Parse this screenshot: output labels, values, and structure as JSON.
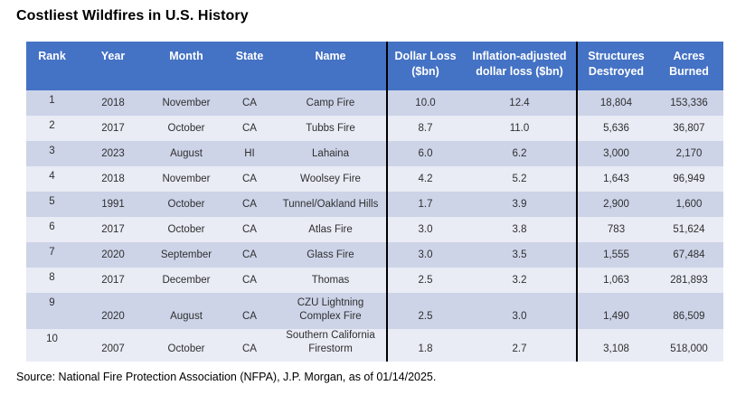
{
  "page": {
    "title": "Costliest Wildfires in U.S. History",
    "source_note": "Source: National Fire Protection Association (NFPA), J.P. Morgan, as of 01/14/2025."
  },
  "colors": {
    "header_bg": "#4472C4",
    "header_text": "#FFFFFF",
    "band_dark": "#CDD4E8",
    "band_light": "#E9EBF5",
    "group_divider": "#000000",
    "body_text": "#2F2F2F"
  },
  "table": {
    "columns": [
      "Rank",
      "Year",
      "Month",
      "State",
      "Name",
      "Dollar Loss ($bn)",
      "Inflation-adjusted dollar loss ($bn)",
      "Structures Destroyed",
      "Acres Burned"
    ],
    "rows": [
      [
        "1",
        "2018",
        "November",
        "CA",
        "Camp Fire",
        "10.0",
        "12.4",
        "18,804",
        "153,336"
      ],
      [
        "2",
        "2017",
        "October",
        "CA",
        "Tubbs Fire",
        "8.7",
        "11.0",
        "5,636",
        "36,807"
      ],
      [
        "3",
        "2023",
        "August",
        "HI",
        "Lahaina",
        "6.0",
        "6.2",
        "3,000",
        "2,170"
      ],
      [
        "4",
        "2018",
        "November",
        "CA",
        "Woolsey Fire",
        "4.2",
        "5.2",
        "1,643",
        "96,949"
      ],
      [
        "5",
        "1991",
        "October",
        "CA",
        "Tunnel/Oakland Hills",
        "1.7",
        "3.9",
        "2,900",
        "1,600"
      ],
      [
        "6",
        "2017",
        "October",
        "CA",
        "Atlas Fire",
        "3.0",
        "3.8",
        "783",
        "51,624"
      ],
      [
        "7",
        "2020",
        "September",
        "CA",
        "Glass Fire",
        "3.0",
        "3.5",
        "1,555",
        "67,484"
      ],
      [
        "8",
        "2017",
        "December",
        "CA",
        "Thomas",
        "2.5",
        "3.2",
        "1,063",
        "281,893"
      ],
      [
        "9",
        "2020",
        "August",
        "CA",
        "CZU Lightning Complex Fire",
        "2.5",
        "3.0",
        "1,490",
        "86,509"
      ],
      [
        "10",
        "2007",
        "October",
        "CA",
        "Southern California Firestorm",
        "1.8",
        "2.7",
        "3,108",
        "518,000"
      ]
    ]
  },
  "chart_data": {
    "type": "table",
    "title": "Costliest Wildfires in U.S. History",
    "columns": [
      "Rank",
      "Year",
      "Month",
      "State",
      "Name",
      "Dollar Loss ($bn)",
      "Inflation-adjusted dollar loss ($bn)",
      "Structures Destroyed",
      "Acres Burned"
    ],
    "rows": [
      {
        "rank": 1,
        "year": 2018,
        "month": "November",
        "state": "CA",
        "name": "Camp Fire",
        "dollar_loss_bn": 10.0,
        "inflation_adjusted_loss_bn": 12.4,
        "structures_destroyed": 18804,
        "acres_burned": 153336
      },
      {
        "rank": 2,
        "year": 2017,
        "month": "October",
        "state": "CA",
        "name": "Tubbs Fire",
        "dollar_loss_bn": 8.7,
        "inflation_adjusted_loss_bn": 11.0,
        "structures_destroyed": 5636,
        "acres_burned": 36807
      },
      {
        "rank": 3,
        "year": 2023,
        "month": "August",
        "state": "HI",
        "name": "Lahaina",
        "dollar_loss_bn": 6.0,
        "inflation_adjusted_loss_bn": 6.2,
        "structures_destroyed": 3000,
        "acres_burned": 2170
      },
      {
        "rank": 4,
        "year": 2018,
        "month": "November",
        "state": "CA",
        "name": "Woolsey Fire",
        "dollar_loss_bn": 4.2,
        "inflation_adjusted_loss_bn": 5.2,
        "structures_destroyed": 1643,
        "acres_burned": 96949
      },
      {
        "rank": 5,
        "year": 1991,
        "month": "October",
        "state": "CA",
        "name": "Tunnel/Oakland Hills",
        "dollar_loss_bn": 1.7,
        "inflation_adjusted_loss_bn": 3.9,
        "structures_destroyed": 2900,
        "acres_burned": 1600
      },
      {
        "rank": 6,
        "year": 2017,
        "month": "October",
        "state": "CA",
        "name": "Atlas Fire",
        "dollar_loss_bn": 3.0,
        "inflation_adjusted_loss_bn": 3.8,
        "structures_destroyed": 783,
        "acres_burned": 51624
      },
      {
        "rank": 7,
        "year": 2020,
        "month": "September",
        "state": "CA",
        "name": "Glass Fire",
        "dollar_loss_bn": 3.0,
        "inflation_adjusted_loss_bn": 3.5,
        "structures_destroyed": 1555,
        "acres_burned": 67484
      },
      {
        "rank": 8,
        "year": 2017,
        "month": "December",
        "state": "CA",
        "name": "Thomas",
        "dollar_loss_bn": 2.5,
        "inflation_adjusted_loss_bn": 3.2,
        "structures_destroyed": 1063,
        "acres_burned": 281893
      },
      {
        "rank": 9,
        "year": 2020,
        "month": "August",
        "state": "CA",
        "name": "CZU Lightning Complex Fire",
        "dollar_loss_bn": 2.5,
        "inflation_adjusted_loss_bn": 3.0,
        "structures_destroyed": 1490,
        "acres_burned": 86509
      },
      {
        "rank": 10,
        "year": 2007,
        "month": "October",
        "state": "CA",
        "name": "Southern California Firestorm",
        "dollar_loss_bn": 1.8,
        "inflation_adjusted_loss_bn": 2.7,
        "structures_destroyed": 3108,
        "acres_burned": 518000
      }
    ]
  }
}
